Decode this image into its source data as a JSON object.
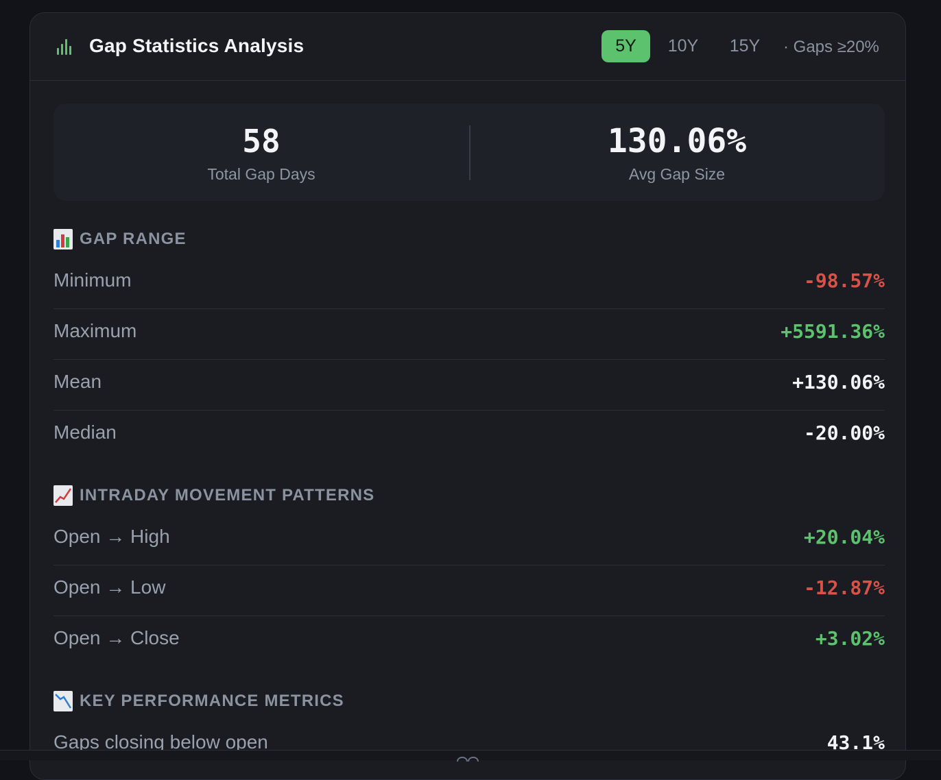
{
  "header": {
    "title": "Gap Statistics Analysis",
    "icon": "bar-chart-icon",
    "ranges": [
      {
        "label": "5Y",
        "active": true
      },
      {
        "label": "10Y",
        "active": false
      },
      {
        "label": "15Y",
        "active": false
      }
    ],
    "note": "· Gaps ≥20%"
  },
  "summary": {
    "total_gap_days": {
      "value": "58",
      "label": "Total Gap Days"
    },
    "avg_gap_size": {
      "value": "130.06%",
      "label": "Avg Gap Size"
    }
  },
  "gap_range": {
    "title": "GAP RANGE",
    "icon": "bar-chart-emoji-icon",
    "rows": [
      {
        "label": "Minimum",
        "value": "-98.57%",
        "tone": "negative"
      },
      {
        "label": "Maximum",
        "value": "+5591.36%",
        "tone": "positive"
      },
      {
        "label": "Mean",
        "value": "+130.06%",
        "tone": "neutral"
      },
      {
        "label": "Median",
        "value": "-20.00%",
        "tone": "neutral"
      }
    ]
  },
  "intraday": {
    "title": "INTRADAY MOVEMENT PATTERNS",
    "icon": "chart-increasing-icon",
    "rows": [
      {
        "label": "Open → High",
        "value": "+20.04%",
        "tone": "positive"
      },
      {
        "label": "Open → Low",
        "value": "-12.87%",
        "tone": "negative"
      },
      {
        "label": "Open → Close",
        "value": "+3.02%",
        "tone": "positive"
      }
    ]
  },
  "key_metrics": {
    "title": "KEY PERFORMANCE METRICS",
    "icon": "chart-decreasing-icon",
    "rows": [
      {
        "label": "Gaps closing below open",
        "value": "43.1%",
        "tone": "neutral"
      }
    ]
  },
  "colors": {
    "accent_green": "#5cc26d",
    "negative_red": "#d8524a",
    "panel_bg": "#1a1c22",
    "page_bg": "#111318"
  }
}
